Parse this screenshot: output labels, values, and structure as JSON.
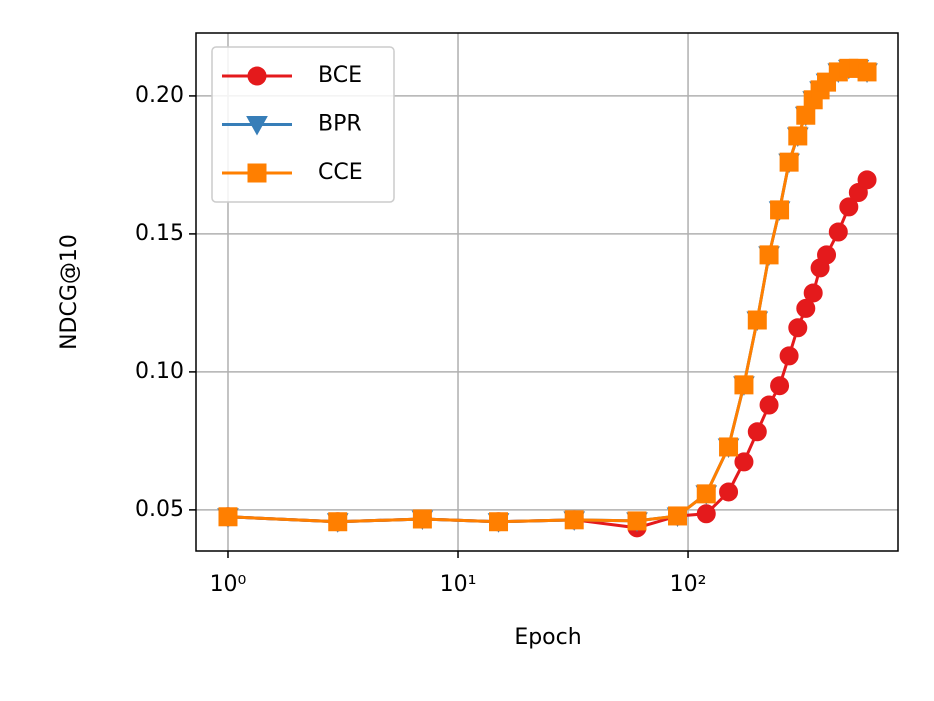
{
  "chart_data": {
    "type": "line",
    "xlabel": "Epoch",
    "ylabel": "NDCG@10",
    "xscale": "log",
    "grid": true,
    "legend": "upper left",
    "x": [
      1,
      3,
      7,
      15,
      32,
      60,
      90,
      120,
      150,
      175,
      200,
      225,
      250,
      275,
      300,
      325,
      350,
      375,
      400,
      450,
      500,
      550,
      600
    ],
    "series": [
      {
        "name": "BCE",
        "color": "#e41a1c",
        "marker": "circle",
        "values": [
          0.0475,
          0.0457,
          0.0467,
          0.0457,
          0.0464,
          0.0435,
          0.0478,
          0.0486,
          0.0565,
          0.0674,
          0.0783,
          0.088,
          0.095,
          0.1058,
          0.116,
          0.123,
          0.1286,
          0.1377,
          0.1424,
          0.1507,
          0.1598,
          0.165,
          0.1696
        ]
      },
      {
        "name": "BPR",
        "color": "#377eb8",
        "marker": "triangle-down",
        "values": [
          0.0475,
          0.0457,
          0.0467,
          0.0457,
          0.0464,
          0.046,
          0.0478,
          0.0558,
          0.0728,
          0.0953,
          0.1188,
          0.1424,
          0.1587,
          0.176,
          0.1855,
          0.193,
          0.1986,
          0.2022,
          0.205,
          0.2087,
          0.21,
          0.21,
          0.2087
        ]
      },
      {
        "name": "CCE",
        "color": "#ff7f00",
        "marker": "square",
        "values": [
          0.0475,
          0.0457,
          0.0467,
          0.0457,
          0.0464,
          0.046,
          0.0478,
          0.0558,
          0.0728,
          0.0953,
          0.1188,
          0.1424,
          0.1587,
          0.176,
          0.1855,
          0.193,
          0.1986,
          0.2022,
          0.205,
          0.2087,
          0.21,
          0.21,
          0.2087
        ]
      }
    ],
    "xlim": [
      0.726,
      818
    ],
    "xticks": [
      {
        "value": 1,
        "label": "10⁰"
      },
      {
        "value": 10,
        "label": "10¹"
      },
      {
        "value": 100,
        "label": "10²"
      }
    ],
    "ylim": [
      0.0351,
      0.2228
    ],
    "yticks": [
      0.05,
      {
        "value": 0.1,
        "label": "0.10"
      },
      0.15,
      {
        "value": 0.2,
        "label": "0.20"
      }
    ]
  }
}
